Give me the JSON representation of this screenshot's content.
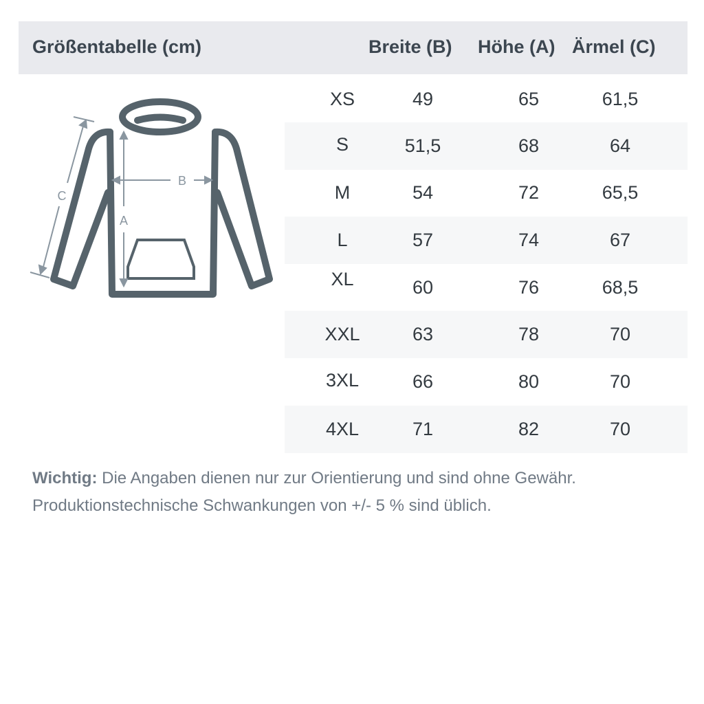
{
  "header": {
    "title": "Größentabelle (cm)",
    "col_width": "Breite (B)",
    "col_height": "Höhe (A)",
    "col_sleeve": "Ärmel (C)"
  },
  "diagram": {
    "label_a": "A",
    "label_b": "B",
    "label_c": "C",
    "color": "#56636b"
  },
  "rows": [
    {
      "size": "XS",
      "width": "49",
      "height": "65",
      "sleeve": "61,5"
    },
    {
      "size": "S",
      "width": "51,5",
      "height": "68",
      "sleeve": "64"
    },
    {
      "size": "M",
      "width": "54",
      "height": "72",
      "sleeve": "65,5"
    },
    {
      "size": "L",
      "width": "57",
      "height": "74",
      "sleeve": "67"
    },
    {
      "size": "XL",
      "width": "60",
      "height": "76",
      "sleeve": "68,5"
    },
    {
      "size": "XXL",
      "width": "63",
      "height": "78",
      "sleeve": "70"
    },
    {
      "size": "3XL",
      "width": "66",
      "height": "80",
      "sleeve": "70"
    },
    {
      "size": "4XL",
      "width": "71",
      "height": "82",
      "sleeve": "70"
    }
  ],
  "note": {
    "label": "Wichtig:",
    "line1": "Die Angaben dienen nur zur Orientierung und sind ohne Gewähr.",
    "line2": "Produktionstechnische Schwankungen von +/- 5 % sind üblich."
  }
}
